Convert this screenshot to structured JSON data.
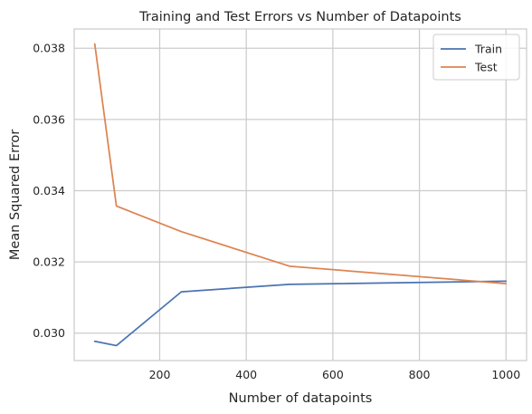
{
  "chart_data": {
    "type": "line",
    "title": "Training and Test Errors vs Number of Datapoints",
    "xlabel": "Number of datapoints",
    "ylabel": "Mean Squared Error",
    "x": [
      50,
      100,
      250,
      500,
      1000
    ],
    "series": [
      {
        "name": "Train",
        "color": "#4c72b0",
        "values": [
          0.02977,
          0.02965,
          0.03116,
          0.03137,
          0.03146
        ]
      },
      {
        "name": "Test",
        "color": "#dd8452",
        "values": [
          0.03812,
          0.03357,
          0.03285,
          0.03188,
          0.03139
        ]
      }
    ],
    "xlim": [
      2.5,
      1047.5
    ],
    "ylim": [
      0.02923,
      0.03854
    ],
    "xticks": [
      200,
      400,
      600,
      800,
      1000
    ],
    "yticks": [
      0.03,
      0.032,
      0.034,
      0.036,
      0.038
    ],
    "xtick_labels": [
      "200",
      "400",
      "600",
      "800",
      "1000"
    ],
    "ytick_labels": [
      "0.030",
      "0.032",
      "0.034",
      "0.036",
      "0.038"
    ],
    "grid": true,
    "legend_position": "top-right"
  }
}
